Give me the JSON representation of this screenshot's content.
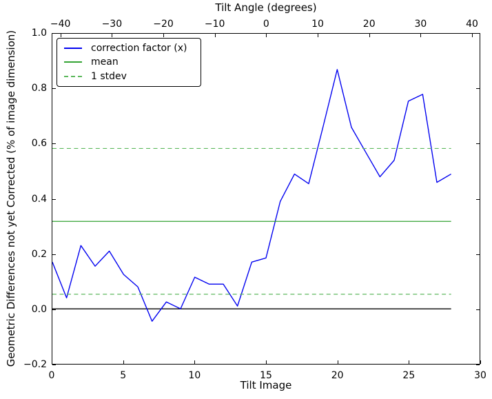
{
  "chart_data": {
    "type": "line",
    "title": "Tilt Angle (degrees)",
    "top_axis": {
      "label": "Tilt Angle (degrees)",
      "range": [
        -41.7,
        41.6
      ],
      "tick_values": [
        -40,
        -30,
        -20,
        -10,
        0,
        10,
        20,
        30,
        40
      ],
      "tick_labels": [
        "−40",
        "−30",
        "−20",
        "−10",
        "0",
        "10",
        "20",
        "30",
        "40"
      ]
    },
    "x_axis": {
      "label": "Tilt Image",
      "range": [
        0,
        30
      ],
      "tick_values": [
        0,
        5,
        10,
        15,
        20,
        25,
        30
      ],
      "tick_labels": [
        "0",
        "5",
        "10",
        "15",
        "20",
        "25",
        "30"
      ]
    },
    "y_axis": {
      "label": "Geometric Differences not yet Corrected (% of image dimension)",
      "range": [
        -0.2,
        1.0
      ],
      "tick_values": [
        1.0,
        0.8,
        0.6,
        0.4,
        0.2,
        0.0,
        -0.2
      ],
      "tick_labels": [
        "1.0",
        "0.8",
        "0.6",
        "0.4",
        "0.2",
        "0.0",
        "−0.2"
      ],
      "grid": false
    },
    "series": [
      {
        "name": "correction factor (x)",
        "type": "line",
        "color": "#0202f0",
        "dash": "solid",
        "x": [
          0,
          1,
          2,
          3,
          4,
          5,
          6,
          7,
          8,
          9,
          10,
          11,
          12,
          13,
          14,
          15,
          16,
          17,
          18,
          19,
          20,
          21,
          22,
          23,
          24,
          25,
          26,
          27,
          28
        ],
        "y": [
          0.17,
          0.04,
          0.23,
          0.155,
          0.21,
          0.125,
          0.08,
          -0.045,
          0.025,
          0.0,
          0.115,
          0.09,
          0.09,
          0.01,
          0.17,
          0.185,
          0.39,
          0.49,
          0.455,
          0.66,
          0.87,
          0.66,
          0.57,
          0.48,
          0.54,
          0.755,
          0.78,
          0.46,
          0.49
        ]
      },
      {
        "name": "mean",
        "type": "hline",
        "color": "#33a333",
        "dash": "solid",
        "y": [
          0.318
        ],
        "x_extent": [
          0,
          28
        ]
      },
      {
        "name": "1 stdev",
        "type": "hline",
        "color": "#5cb85c",
        "dash": "dashed",
        "y": [
          0.583,
          0.053
        ],
        "x_extent": [
          0,
          28
        ]
      }
    ],
    "zero_line": {
      "color": "#000000",
      "y": 0.0,
      "x_extent": [
        0,
        28
      ]
    },
    "legend": {
      "position": "upper-left",
      "items": [
        {
          "label": "correction factor (x)",
          "color": "#0202f0",
          "dash": "solid"
        },
        {
          "label": "mean",
          "color": "#33a333",
          "dash": "solid"
        },
        {
          "label": "1 stdev",
          "color": "#5cb85c",
          "dash": "dashed"
        }
      ]
    }
  }
}
